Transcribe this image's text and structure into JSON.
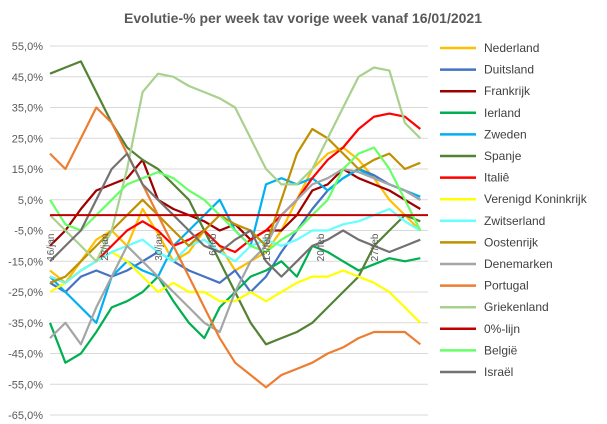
{
  "chart_data": {
    "type": "line",
    "title": "Evolutie-% per week tav vorige week vanaf 16/01/2021",
    "xlabel": "",
    "ylabel": "",
    "ylim": [
      -65,
      55
    ],
    "y_ticks": [
      "55,0%",
      "45,0%",
      "35,0%",
      "25,0%",
      "15,0%",
      "5,0%",
      "-5,0%",
      "-15,0%",
      "-25,0%",
      "-35,0%",
      "-45,0%",
      "-55,0%",
      "-65,0%"
    ],
    "y_tick_values": [
      55,
      45,
      35,
      25,
      15,
      5,
      -5,
      -15,
      -25,
      -35,
      -45,
      -55,
      -65
    ],
    "x_ticks": [
      "16/jan",
      "23/jan",
      "30/jan",
      "6/feb",
      "13/feb",
      "20/feb",
      "27/feb"
    ],
    "x_tick_day": [
      0,
      7,
      14,
      21,
      28,
      35,
      42
    ],
    "x_range": [
      0,
      49
    ],
    "grid": "horizontal",
    "legend_position": "right",
    "series": [
      {
        "name": "Nederland",
        "color": "#ffc000",
        "x": [
          0,
          2,
          4,
          6,
          8,
          10,
          12,
          14,
          16,
          18,
          20,
          22,
          24,
          26,
          28,
          30,
          32,
          34,
          36,
          38,
          40,
          42,
          44,
          46,
          48
        ],
        "values": [
          -18,
          -22,
          -15,
          -8,
          -5,
          -10,
          2,
          -6,
          -15,
          -12,
          -5,
          -10,
          -18,
          -15,
          -12,
          -5,
          5,
          15,
          20,
          22,
          18,
          12,
          5,
          0,
          -5
        ]
      },
      {
        "name": "Duitsland",
        "color": "#4472c4",
        "x": [
          0,
          2,
          4,
          6,
          8,
          10,
          12,
          14,
          16,
          18,
          20,
          22,
          24,
          26,
          28,
          30,
          32,
          34,
          36,
          38,
          40,
          42,
          44,
          46,
          48
        ],
        "values": [
          -22,
          -25,
          -20,
          -18,
          -20,
          -18,
          -15,
          -12,
          -15,
          -18,
          -20,
          -22,
          -18,
          -25,
          -20,
          -12,
          -5,
          2,
          8,
          12,
          15,
          13,
          10,
          8,
          5
        ]
      },
      {
        "name": "Frankrijk",
        "color": "#9e0000",
        "x": [
          0,
          2,
          4,
          6,
          8,
          10,
          12,
          14,
          16,
          18,
          20,
          22,
          24,
          26,
          28,
          30,
          32,
          34,
          36,
          38,
          40,
          42,
          44,
          46,
          48
        ],
        "values": [
          -10,
          -5,
          2,
          8,
          10,
          12,
          18,
          5,
          2,
          0,
          -2,
          -5,
          -3,
          -8,
          -5,
          -5,
          0,
          8,
          10,
          15,
          12,
          10,
          8,
          5,
          2
        ]
      },
      {
        "name": "Ierland",
        "color": "#00b050",
        "x": [
          0,
          2,
          4,
          6,
          8,
          10,
          12,
          14,
          16,
          18,
          20,
          22,
          24,
          26,
          28,
          30,
          32,
          34,
          36,
          38,
          40,
          42,
          44,
          46,
          48
        ],
        "values": [
          -35,
          -48,
          -45,
          -38,
          -30,
          -28,
          -25,
          -20,
          -28,
          -35,
          -40,
          -30,
          -25,
          -20,
          -18,
          -15,
          -20,
          -10,
          -12,
          -15,
          -18,
          -16,
          -14,
          -15,
          -14
        ]
      },
      {
        "name": "Zweden",
        "color": "#00b0f0",
        "x": [
          0,
          2,
          4,
          6,
          8,
          10,
          12,
          14,
          16,
          18,
          20,
          22,
          24,
          26,
          28,
          30,
          32,
          34,
          36,
          38,
          40,
          42,
          44,
          46,
          48
        ],
        "values": [
          -20,
          -25,
          -30,
          -35,
          -20,
          -15,
          -18,
          -20,
          -10,
          -5,
          0,
          5,
          -5,
          -10,
          10,
          12,
          10,
          12,
          8,
          12,
          15,
          12,
          10,
          8,
          6
        ]
      },
      {
        "name": "Spanje",
        "color": "#548235",
        "x": [
          0,
          2,
          4,
          6,
          8,
          10,
          12,
          14,
          16,
          18,
          20,
          22,
          24,
          26,
          28,
          30,
          32,
          34,
          36,
          38,
          40,
          42,
          44,
          46,
          48
        ],
        "values": [
          46,
          48,
          50,
          40,
          30,
          22,
          18,
          15,
          10,
          5,
          -5,
          -15,
          -25,
          -35,
          -42,
          -40,
          -38,
          -35,
          -30,
          -25,
          -20,
          -10,
          -5,
          0,
          -2
        ]
      },
      {
        "name": "Italiê",
        "color": "#ff0000",
        "x": [
          0,
          2,
          4,
          6,
          8,
          10,
          12,
          14,
          16,
          18,
          20,
          22,
          24,
          26,
          28,
          30,
          32,
          34,
          36,
          38,
          40,
          42,
          44,
          46,
          48
        ],
        "values": [
          -20,
          -22,
          -18,
          -15,
          -10,
          -5,
          -2,
          -5,
          -10,
          -8,
          -5,
          -10,
          -12,
          -8,
          -5,
          0,
          5,
          12,
          18,
          22,
          28,
          32,
          33,
          32,
          28
        ]
      },
      {
        "name": "Verenigd Koninkrijk",
        "color": "#ffff00",
        "x": [
          0,
          2,
          4,
          6,
          8,
          10,
          12,
          14,
          16,
          18,
          20,
          22,
          24,
          26,
          28,
          30,
          32,
          34,
          36,
          38,
          40,
          42,
          44,
          46,
          48
        ],
        "values": [
          -25,
          -22,
          -18,
          -15,
          -12,
          -15,
          -20,
          -25,
          -22,
          -25,
          -25,
          -28,
          -28,
          -25,
          -28,
          -25,
          -22,
          -20,
          -20,
          -18,
          -20,
          -22,
          -25,
          -30,
          -35
        ]
      },
      {
        "name": "Zwitserland",
        "color": "#66ffff",
        "x": [
          0,
          2,
          4,
          6,
          8,
          10,
          12,
          14,
          16,
          18,
          20,
          22,
          24,
          26,
          28,
          30,
          32,
          34,
          36,
          38,
          40,
          42,
          44,
          46,
          48
        ],
        "values": [
          -20,
          -22,
          -18,
          -15,
          -12,
          -10,
          -8,
          -12,
          -15,
          -10,
          -8,
          -12,
          -15,
          -10,
          -8,
          -10,
          -8,
          -5,
          -5,
          -3,
          -2,
          0,
          2,
          -2,
          -5
        ]
      },
      {
        "name": "Oostenrijk",
        "color": "#bf9000",
        "x": [
          0,
          2,
          4,
          6,
          8,
          10,
          12,
          14,
          16,
          18,
          20,
          22,
          24,
          26,
          28,
          30,
          32,
          34,
          36,
          38,
          40,
          42,
          44,
          46,
          48
        ],
        "values": [
          -22,
          -20,
          -15,
          -10,
          -5,
          0,
          5,
          0,
          -5,
          -10,
          -5,
          0,
          -3,
          -5,
          -10,
          5,
          20,
          28,
          25,
          20,
          15,
          18,
          20,
          15,
          17
        ]
      },
      {
        "name": "Denemarken",
        "color": "#a5a5a5",
        "x": [
          0,
          2,
          4,
          6,
          8,
          10,
          12,
          14,
          16,
          18,
          20,
          22,
          24,
          26,
          28,
          30,
          32,
          34,
          36,
          38,
          40,
          42,
          44,
          46,
          48
        ],
        "values": [
          -40,
          -35,
          -42,
          -30,
          -20,
          -10,
          -15,
          -20,
          -25,
          -30,
          -35,
          -38,
          -25,
          -15,
          -10,
          0,
          5,
          10,
          12,
          15,
          14,
          12,
          10,
          8,
          5
        ]
      },
      {
        "name": "Portugal",
        "color": "#ed7d31",
        "x": [
          0,
          2,
          4,
          6,
          8,
          10,
          12,
          14,
          16,
          18,
          20,
          22,
          24,
          26,
          28,
          30,
          32,
          34,
          36,
          38,
          40,
          42,
          44,
          46,
          48
        ],
        "values": [
          20,
          15,
          25,
          35,
          30,
          20,
          10,
          0,
          -10,
          -20,
          -30,
          -40,
          -48,
          -52,
          -56,
          -52,
          -50,
          -48,
          -45,
          -43,
          -40,
          -38,
          -38,
          -38,
          -42
        ]
      },
      {
        "name": "Griekenland",
        "color": "#a9d18e",
        "x": [
          0,
          2,
          4,
          6,
          8,
          10,
          12,
          14,
          16,
          18,
          20,
          22,
          24,
          26,
          28,
          30,
          32,
          34,
          36,
          38,
          40,
          42,
          44,
          46,
          48
        ],
        "values": [
          0,
          -5,
          -10,
          -15,
          -5,
          15,
          40,
          46,
          45,
          42,
          40,
          38,
          35,
          25,
          15,
          10,
          10,
          15,
          25,
          35,
          45,
          48,
          47,
          30,
          25
        ]
      },
      {
        "name": "0%-lijn",
        "color": "#c00000",
        "x": [
          0,
          49
        ],
        "values": [
          0,
          0
        ]
      },
      {
        "name": "België",
        "color": "#66ff66",
        "x": [
          0,
          2,
          4,
          6,
          8,
          10,
          12,
          14,
          16,
          18,
          20,
          22,
          24,
          26,
          28,
          30,
          32,
          34,
          36,
          38,
          40,
          42,
          44,
          46,
          48
        ],
        "values": [
          5,
          -3,
          -5,
          0,
          5,
          10,
          12,
          14,
          12,
          8,
          5,
          0,
          -5,
          -10,
          -12,
          -8,
          -5,
          0,
          5,
          15,
          20,
          22,
          15,
          5,
          -5
        ]
      },
      {
        "name": "Israël",
        "color": "#767171",
        "x": [
          0,
          2,
          4,
          6,
          8,
          10,
          12,
          14,
          16,
          18,
          20,
          22,
          24,
          26,
          28,
          30,
          32,
          34,
          36,
          38,
          40,
          42,
          44,
          46,
          48
        ],
        "values": [
          -15,
          -10,
          -5,
          5,
          15,
          20,
          10,
          5,
          0,
          -5,
          -10,
          -12,
          -8,
          -5,
          -15,
          -20,
          -15,
          -10,
          -8,
          -5,
          -8,
          -10,
          -12,
          -10,
          -8
        ]
      }
    ]
  }
}
